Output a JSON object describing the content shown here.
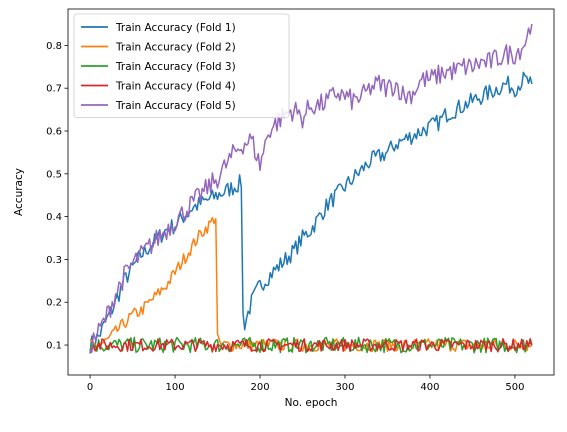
{
  "chart_data": {
    "type": "line",
    "xlabel": "No. epoch",
    "ylabel": "Accuracy",
    "xlim": [
      -26,
      546
    ],
    "ylim": [
      0.03,
      0.885
    ],
    "xticks": [
      0,
      100,
      200,
      300,
      400,
      500
    ],
    "yticks": [
      0.1,
      0.2,
      0.3,
      0.4,
      0.5,
      0.6,
      0.7,
      0.8
    ],
    "grid": false,
    "legend_position": "top-left",
    "series": [
      {
        "name": "Train Accuracy (Fold 1)",
        "color": "#1f77b4",
        "x": [
          0,
          10,
          20,
          30,
          40,
          50,
          60,
          70,
          80,
          90,
          100,
          110,
          120,
          130,
          140,
          150,
          160,
          170,
          178,
          180,
          182,
          190,
          200,
          210,
          220,
          230,
          240,
          250,
          260,
          270,
          280,
          290,
          300,
          310,
          320,
          330,
          340,
          350,
          360,
          370,
          380,
          390,
          400,
          410,
          420,
          430,
          440,
          450,
          460,
          470,
          480,
          490,
          500,
          510,
          520
        ],
        "y": [
          0.1,
          0.12,
          0.16,
          0.2,
          0.25,
          0.28,
          0.31,
          0.33,
          0.35,
          0.37,
          0.38,
          0.4,
          0.42,
          0.43,
          0.44,
          0.45,
          0.46,
          0.47,
          0.48,
          0.17,
          0.15,
          0.2,
          0.24,
          0.26,
          0.28,
          0.3,
          0.32,
          0.35,
          0.37,
          0.4,
          0.43,
          0.45,
          0.47,
          0.49,
          0.51,
          0.53,
          0.54,
          0.55,
          0.57,
          0.58,
          0.59,
          0.6,
          0.61,
          0.62,
          0.64,
          0.65,
          0.66,
          0.67,
          0.68,
          0.69,
          0.7,
          0.71,
          0.7,
          0.72,
          0.71
        ]
      },
      {
        "name": "Train Accuracy (Fold 2)",
        "color": "#ff7f0e",
        "x": [
          0,
          10,
          20,
          30,
          40,
          50,
          60,
          70,
          80,
          90,
          100,
          110,
          120,
          130,
          140,
          148,
          150,
          152,
          160,
          200,
          250,
          300,
          350,
          400,
          450,
          500,
          520
        ],
        "y": [
          0.1,
          0.1,
          0.11,
          0.13,
          0.15,
          0.17,
          0.18,
          0.2,
          0.22,
          0.24,
          0.27,
          0.3,
          0.33,
          0.36,
          0.38,
          0.4,
          0.12,
          0.1,
          0.1,
          0.1,
          0.1,
          0.1,
          0.1,
          0.1,
          0.1,
          0.1,
          0.1
        ]
      },
      {
        "name": "Train Accuracy (Fold 3)",
        "color": "#2ca02c",
        "x": [
          0,
          50,
          100,
          150,
          200,
          250,
          300,
          350,
          400,
          450,
          500,
          520
        ],
        "y": [
          0.1,
          0.1,
          0.1,
          0.1,
          0.1,
          0.1,
          0.1,
          0.1,
          0.1,
          0.1,
          0.1,
          0.1
        ]
      },
      {
        "name": "Train Accuracy (Fold 4)",
        "color": "#d62728",
        "x": [
          0,
          50,
          100,
          150,
          200,
          250,
          300,
          350,
          400,
          450,
          500,
          520
        ],
        "y": [
          0.1,
          0.1,
          0.1,
          0.1,
          0.1,
          0.1,
          0.1,
          0.1,
          0.1,
          0.1,
          0.1,
          0.1
        ]
      },
      {
        "name": "Train Accuracy (Fold 5)",
        "color": "#9467bd",
        "x": [
          0,
          10,
          20,
          30,
          40,
          50,
          60,
          70,
          80,
          90,
          100,
          110,
          120,
          130,
          140,
          150,
          160,
          170,
          180,
          190,
          200,
          210,
          220,
          230,
          240,
          250,
          260,
          270,
          280,
          290,
          300,
          310,
          320,
          330,
          340,
          350,
          360,
          370,
          380,
          390,
          400,
          410,
          420,
          430,
          440,
          450,
          460,
          470,
          480,
          490,
          500,
          510,
          520
        ],
        "y": [
          0.1,
          0.13,
          0.17,
          0.22,
          0.26,
          0.29,
          0.31,
          0.33,
          0.35,
          0.37,
          0.39,
          0.41,
          0.43,
          0.45,
          0.47,
          0.49,
          0.52,
          0.55,
          0.57,
          0.58,
          0.52,
          0.6,
          0.62,
          0.64,
          0.65,
          0.63,
          0.66,
          0.66,
          0.67,
          0.69,
          0.68,
          0.67,
          0.68,
          0.7,
          0.71,
          0.7,
          0.71,
          0.68,
          0.69,
          0.72,
          0.72,
          0.73,
          0.74,
          0.74,
          0.75,
          0.75,
          0.76,
          0.76,
          0.77,
          0.78,
          0.78,
          0.8,
          0.85
        ]
      }
    ]
  }
}
